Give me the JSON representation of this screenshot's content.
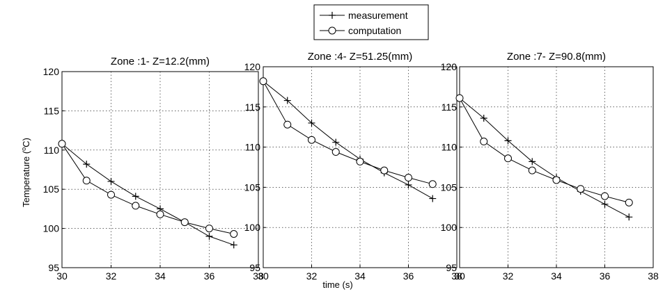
{
  "legend": {
    "items": [
      {
        "label": "measurement",
        "marker": "plus"
      },
      {
        "label": "computation",
        "marker": "circle"
      }
    ]
  },
  "axes": {
    "xlabel": "time (s)",
    "ylabel_prefix": "Temperature (",
    "ylabel_sup": "o",
    "ylabel_suffix": "C)"
  },
  "chart_data": [
    {
      "type": "line",
      "title": "Zone :1- Z=12.2(mm)",
      "xlim": [
        30,
        38
      ],
      "ylim": [
        95,
        120
      ],
      "xticks": [
        "30",
        "32",
        "34",
        "36",
        "38"
      ],
      "yticks": [
        "95",
        "100",
        "105",
        "110",
        "115",
        "120"
      ],
      "grid": true,
      "series": [
        {
          "name": "measurement",
          "marker": "plus",
          "x": [
            30,
            31,
            32,
            33,
            34,
            35,
            36,
            37
          ],
          "y": [
            110.8,
            108.2,
            106.0,
            104.1,
            102.5,
            100.8,
            99.0,
            97.9
          ]
        },
        {
          "name": "computation",
          "marker": "circle",
          "x": [
            30,
            31,
            32,
            33,
            34,
            35,
            36,
            37
          ],
          "y": [
            110.8,
            106.1,
            104.3,
            102.9,
            101.8,
            100.8,
            100.0,
            99.3
          ]
        }
      ]
    },
    {
      "type": "line",
      "title": "Zone :4- Z=51.25(mm)",
      "xlim": [
        30,
        38
      ],
      "ylim": [
        95,
        120
      ],
      "xticks": [
        "30",
        "32",
        "34",
        "36",
        "38"
      ],
      "yticks": [
        "95",
        "100",
        "105",
        "110",
        "115",
        "120"
      ],
      "grid": true,
      "series": [
        {
          "name": "measurement",
          "marker": "plus",
          "x": [
            30,
            31,
            32,
            33,
            34,
            35,
            36,
            37
          ],
          "y": [
            118.2,
            115.8,
            113.0,
            110.6,
            108.5,
            106.8,
            105.3,
            103.6
          ]
        },
        {
          "name": "computation",
          "marker": "circle",
          "x": [
            30,
            31,
            32,
            33,
            34,
            35,
            36,
            37
          ],
          "y": [
            118.2,
            112.8,
            110.9,
            109.4,
            108.2,
            107.1,
            106.2,
            105.4
          ]
        }
      ]
    },
    {
      "type": "line",
      "title": "Zone :7- Z=90.8(mm)",
      "xlim": [
        30,
        38
      ],
      "ylim": [
        95,
        120
      ],
      "xticks": [
        "30",
        "32",
        "34",
        "36",
        "38"
      ],
      "yticks": [
        "95",
        "100",
        "105",
        "110",
        "115",
        "120"
      ],
      "grid": true,
      "series": [
        {
          "name": "measurement",
          "marker": "plus",
          "x": [
            30,
            31,
            32,
            33,
            34,
            35,
            36,
            37
          ],
          "y": [
            116.1,
            113.6,
            110.8,
            108.2,
            106.2,
            104.5,
            102.9,
            101.3
          ]
        },
        {
          "name": "computation",
          "marker": "circle",
          "x": [
            30,
            31,
            32,
            33,
            34,
            35,
            36,
            37
          ],
          "y": [
            116.1,
            110.7,
            108.6,
            107.1,
            105.9,
            104.8,
            103.9,
            103.1
          ]
        }
      ]
    }
  ]
}
